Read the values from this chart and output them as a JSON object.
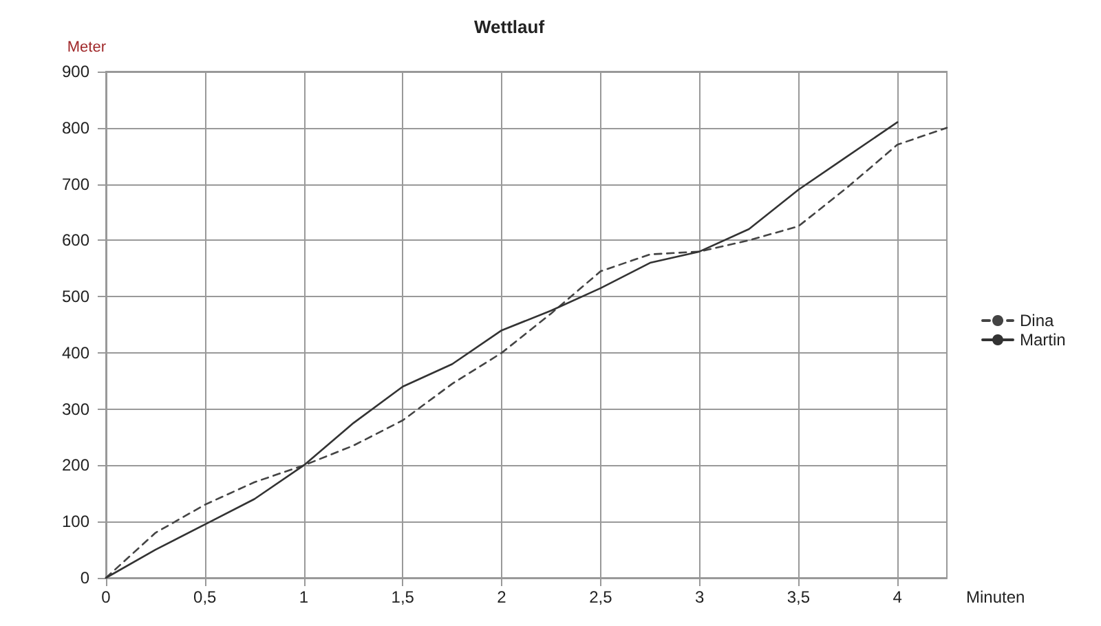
{
  "chart_data": {
    "type": "line",
    "title": "Wettlauf",
    "xlabel": "Minuten",
    "ylabel": "Meter",
    "xlim": [
      0,
      4.25
    ],
    "xticks": [
      0,
      {
        "value": 0.5,
        "label": "0,5"
      },
      1,
      {
        "value": 1.5,
        "label": "1,5"
      },
      2,
      {
        "value": 2.5,
        "label": "2,5"
      },
      3,
      {
        "value": 3.5,
        "label": "3,5"
      },
      4
    ],
    "ylim": [
      0,
      900
    ],
    "yticks": [
      0,
      100,
      200,
      300,
      400,
      500,
      600,
      700,
      800,
      900
    ],
    "grid": true,
    "legend": "right",
    "marker": "none",
    "series": [
      {
        "name": "Dina",
        "color": "#444444",
        "line_style": "dashed",
        "x": [
          0,
          0.25,
          0.5,
          0.75,
          1,
          1.25,
          1.5,
          1.75,
          2,
          2.25,
          2.5,
          2.75,
          3,
          3.25,
          3.5,
          3.75,
          4,
          4.25
        ],
        "values": [
          0,
          80,
          130,
          170,
          200,
          235,
          280,
          345,
          400,
          470,
          545,
          575,
          580,
          600,
          625,
          695,
          770,
          800
        ]
      },
      {
        "name": "Martin",
        "color": "#333333",
        "line_style": "solid",
        "x": [
          0,
          0.25,
          0.5,
          0.75,
          1,
          1.25,
          1.5,
          1.75,
          2,
          2.25,
          2.5,
          2.75,
          3,
          3.25,
          3.5,
          3.75,
          4
        ],
        "values": [
          0,
          50,
          95,
          140,
          200,
          275,
          340,
          380,
          440,
          475,
          515,
          560,
          580,
          620,
          690,
          750,
          810
        ]
      }
    ]
  }
}
